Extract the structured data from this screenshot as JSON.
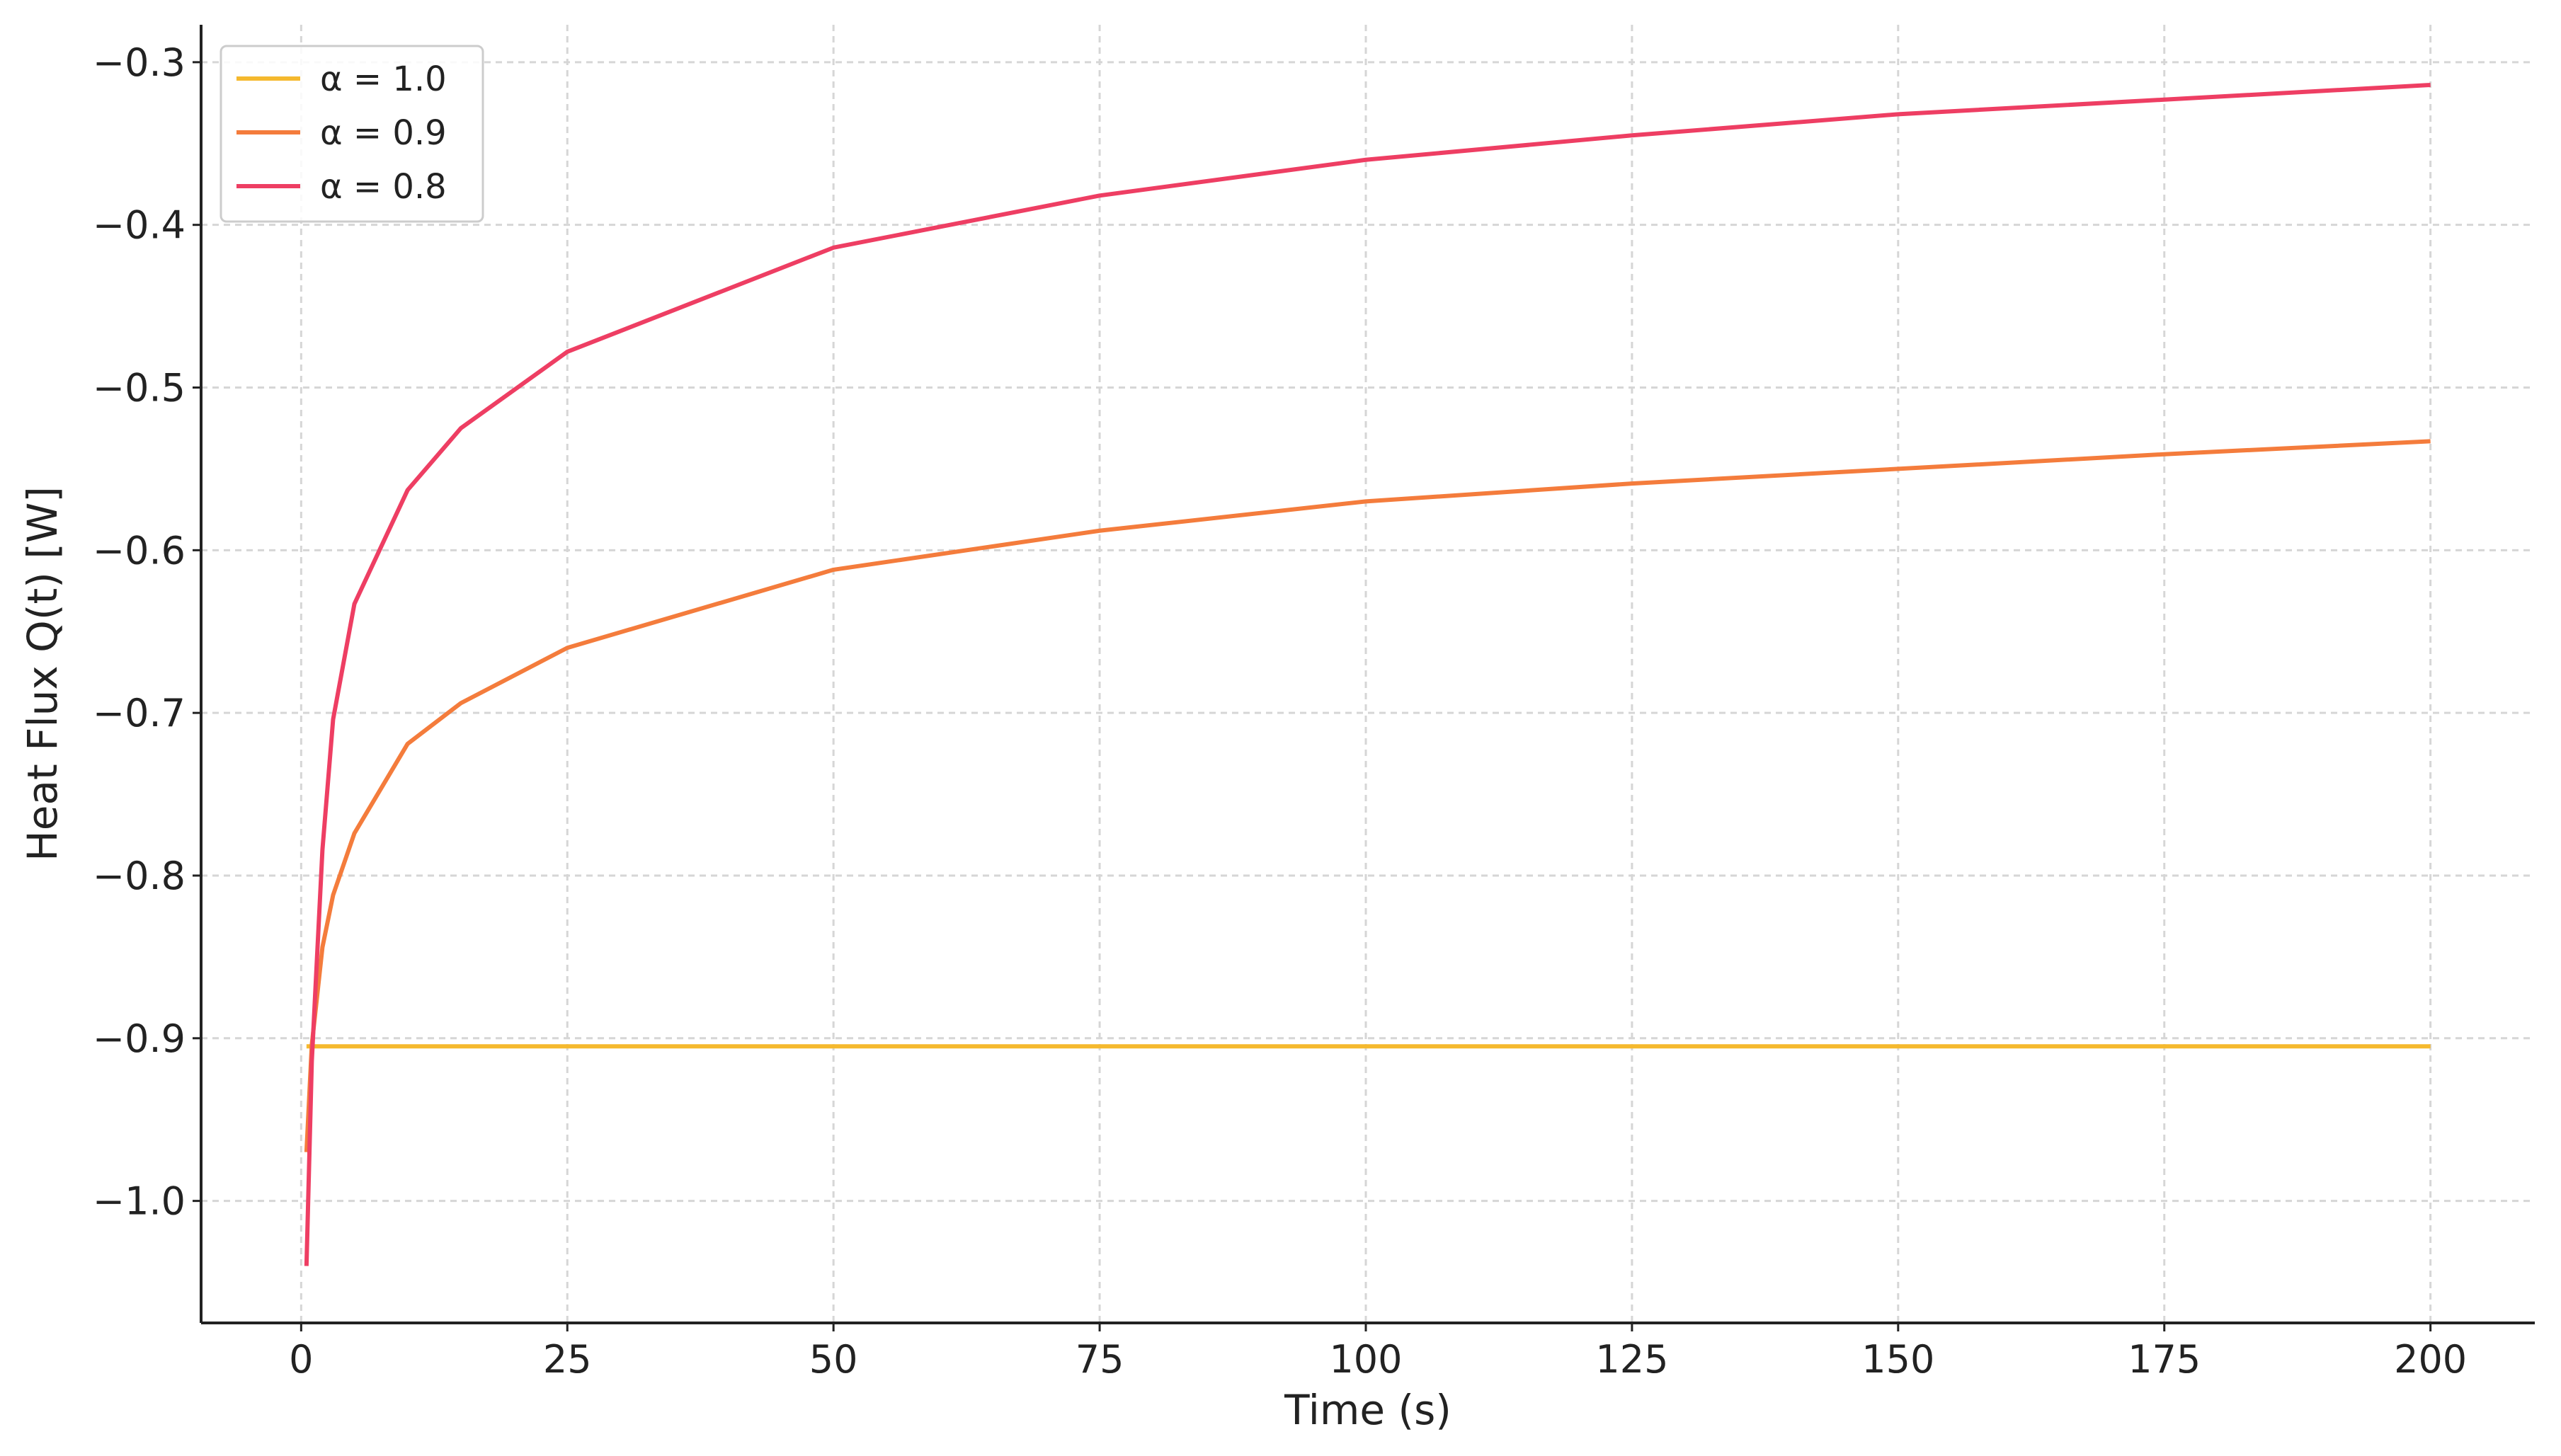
{
  "chart_data": {
    "type": "line",
    "xlabel": "Time (s)",
    "ylabel": "Heat Flux Q(t) [W]",
    "x": [
      0.5,
      1,
      2,
      3,
      5,
      10,
      15,
      25,
      50,
      75,
      100,
      125,
      150,
      175,
      200
    ],
    "series": [
      {
        "name": "α = 1.0",
        "color": "#f5b92e",
        "values": [
          -0.905,
          -0.905,
          -0.905,
          -0.905,
          -0.905,
          -0.905,
          -0.905,
          -0.905,
          -0.905,
          -0.905,
          -0.905,
          -0.905,
          -0.905,
          -0.905,
          -0.905
        ]
      },
      {
        "name": "α = 0.9",
        "color": "#f47c3c",
        "values": [
          -0.97,
          -0.904,
          -0.844,
          -0.812,
          -0.774,
          -0.719,
          -0.694,
          -0.66,
          -0.612,
          -0.588,
          -0.57,
          -0.559,
          -0.55,
          -0.541,
          -0.533
        ]
      },
      {
        "name": "α = 0.8",
        "color": "#ee3e63",
        "values": [
          -1.04,
          -0.914,
          -0.784,
          -0.704,
          -0.633,
          -0.563,
          -0.525,
          -0.478,
          -0.414,
          -0.382,
          -0.36,
          -0.345,
          -0.332,
          -0.323,
          -0.314
        ]
      }
    ],
    "xlim": [
      -9.4,
      209.8
    ],
    "ylim": [
      -1.075,
      -0.277
    ],
    "xticks": [
      0,
      25,
      50,
      75,
      100,
      125,
      150,
      175,
      200
    ],
    "yticks": [
      {
        "value": -1.0,
        "label": "−1.0"
      },
      {
        "value": -0.9,
        "label": "−0.9"
      },
      {
        "value": -0.8,
        "label": "−0.8"
      },
      {
        "value": -0.7,
        "label": "−0.7"
      },
      {
        "value": -0.6,
        "label": "−0.6"
      },
      {
        "value": -0.5,
        "label": "−0.5"
      },
      {
        "value": -0.4,
        "label": "−0.4"
      },
      {
        "value": -0.3,
        "label": "−0.3"
      }
    ],
    "grid": true,
    "legend": "upper left"
  }
}
